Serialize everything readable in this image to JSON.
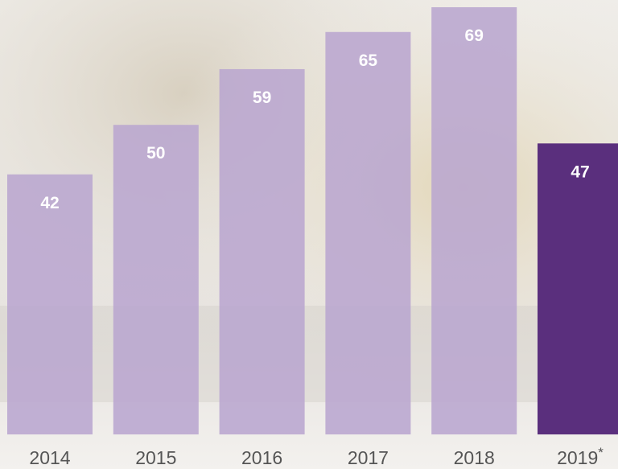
{
  "chart_data": {
    "type": "bar",
    "categories": [
      "2014",
      "2015",
      "2016",
      "2017",
      "2018",
      "2019*"
    ],
    "values": [
      42,
      50,
      59,
      65,
      69,
      47
    ],
    "colors": [
      "#b9a6cf",
      "#b9a6cf",
      "#b9a6cf",
      "#b9a6cf",
      "#b9a6cf",
      "#5a2f7d"
    ]
  }
}
